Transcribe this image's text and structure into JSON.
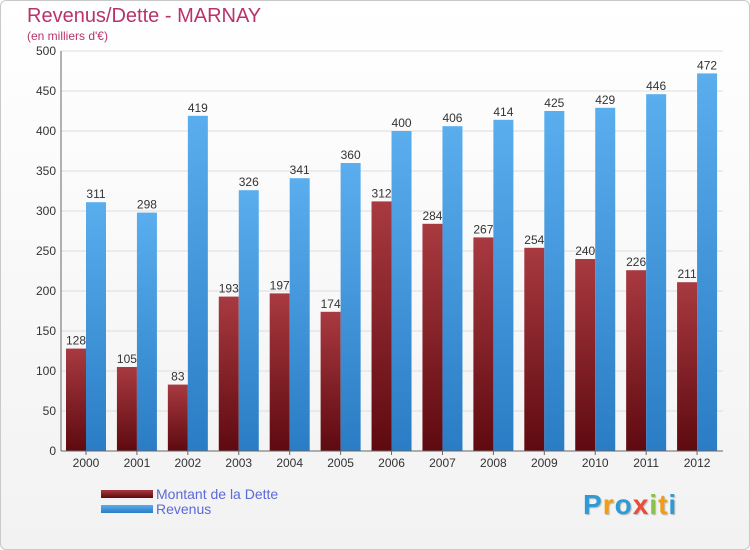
{
  "header": {
    "title": "Revenus/Dette - MARNAY",
    "subtitle": "(en milliers d'€)"
  },
  "colors": {
    "debt": "#7a1a22",
    "debt_light": "#a83a40",
    "revenue": "#3d8fd8",
    "revenue_light": "#5aaeee",
    "axis_text": "#333333",
    "grid": "#dddddd"
  },
  "chart_data": {
    "type": "bar",
    "title": "Revenus/Dette - MARNAY",
    "subtitle": "(en milliers d'€)",
    "xlabel": "",
    "ylabel": "",
    "categories": [
      "2000",
      "2001",
      "2002",
      "2003",
      "2004",
      "2005",
      "2006",
      "2007",
      "2008",
      "2009",
      "2010",
      "2011",
      "2012"
    ],
    "series": [
      {
        "name": "Montant de la Dette",
        "values": [
          128,
          105,
          83,
          193,
          197,
          174,
          312,
          284,
          267,
          254,
          240,
          226,
          211
        ]
      },
      {
        "name": "Revenus",
        "values": [
          311,
          298,
          419,
          326,
          341,
          360,
          400,
          406,
          414,
          425,
          429,
          446,
          472
        ]
      }
    ],
    "ylim": [
      0,
      500
    ],
    "yticks": [
      0,
      50,
      100,
      150,
      200,
      250,
      300,
      350,
      400,
      450,
      500
    ],
    "grid": true,
    "legend": "bottom-left"
  },
  "legend": {
    "items": [
      {
        "label": "Montant de la Dette",
        "color": "#7a1a22"
      },
      {
        "label": "Revenus",
        "color": "#4ea1e6"
      }
    ]
  },
  "logo": {
    "letters": [
      "P",
      "r",
      "o",
      "x",
      "i",
      "t",
      "i"
    ],
    "colors": [
      "#2e9bd6",
      "#f39c12",
      "#2e9bd6",
      "#e74c3c",
      "#8bc34a",
      "#f39c12",
      "#2e9bd6"
    ]
  }
}
